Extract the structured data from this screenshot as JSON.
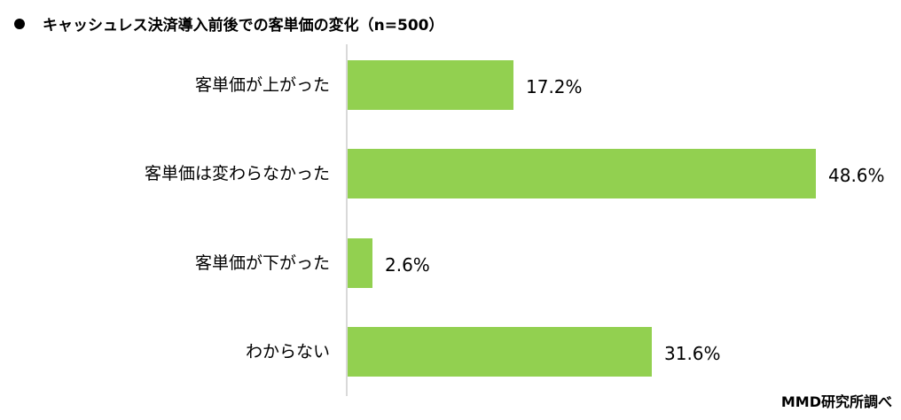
{
  "chart_data": {
    "type": "bar",
    "orientation": "horizontal",
    "title": "キャッシュレス決済導入前後での客単価の変化（n=500）",
    "categories": [
      "客単価が上がった",
      "客単価は変わらなかった",
      "客単価が下がった",
      "わからない"
    ],
    "values": [
      17.2,
      48.6,
      2.6,
      31.6
    ],
    "value_labels": [
      "17.2%",
      "48.6%",
      "2.6%",
      "31.6%"
    ],
    "xlabel": "",
    "ylabel": "",
    "unit": "%",
    "grid": false,
    "legend": null,
    "bar_color": "#92D050",
    "source": "MMD研究所調べ"
  },
  "title": {
    "text": "キャッシュレス決済導入前後での客単価の変化（n=500）"
  },
  "rows": [
    {
      "label": "客単価が上がった",
      "value_label": "17.2%"
    },
    {
      "label": "客単価は変わらなかった",
      "value_label": "48.6%"
    },
    {
      "label": "客単価が下がった",
      "value_label": "2.6%"
    },
    {
      "label": "わからない",
      "value_label": "31.6%"
    }
  ],
  "source": "MMD研究所調べ"
}
